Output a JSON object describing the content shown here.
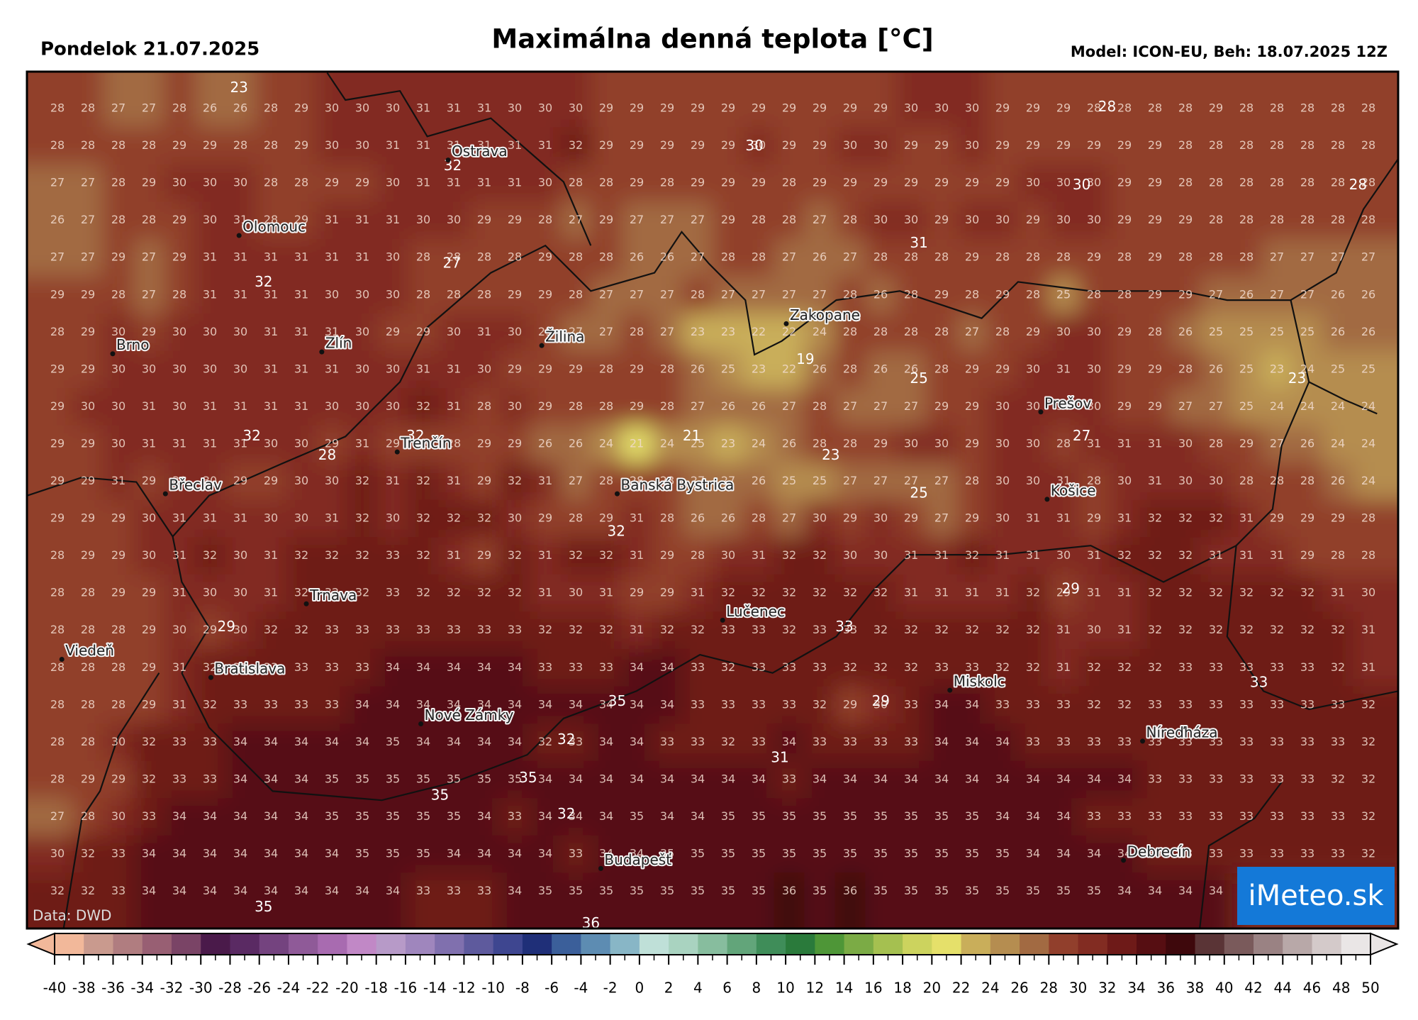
{
  "header": {
    "date": "Pondelok 21.07.2025",
    "title": "Maximálna denná teplota [°C]",
    "model": "Model: ICON-EU, Beh: 18.07.2025 12Z"
  },
  "map": {
    "grid": [
      [
        28,
        28,
        27,
        27,
        28,
        26,
        26,
        28,
        29,
        30,
        30,
        30,
        31,
        31,
        31,
        30,
        30,
        30,
        29,
        29,
        29,
        29,
        29,
        29,
        29,
        29,
        29,
        29,
        30,
        30,
        30,
        29,
        29,
        29,
        28,
        28,
        28,
        28,
        29,
        28,
        28,
        28,
        28,
        28
      ],
      [
        28,
        28,
        28,
        28,
        29,
        29,
        28,
        28,
        29,
        30,
        30,
        31,
        31,
        31,
        31,
        31,
        31,
        32,
        29,
        29,
        29,
        29,
        29,
        30,
        29,
        29,
        30,
        30,
        29,
        29,
        30,
        29,
        29,
        29,
        29,
        29,
        29,
        28,
        28,
        28,
        28,
        28,
        28,
        28
      ],
      [
        27,
        27,
        28,
        29,
        30,
        30,
        30,
        28,
        28,
        29,
        29,
        30,
        31,
        31,
        31,
        31,
        30,
        28,
        28,
        29,
        28,
        29,
        29,
        29,
        28,
        29,
        29,
        29,
        29,
        29,
        29,
        29,
        30,
        30,
        30,
        29,
        29,
        28,
        28,
        28,
        28,
        28,
        28,
        28
      ],
      [
        26,
        27,
        28,
        28,
        29,
        30,
        31,
        28,
        29,
        31,
        31,
        31,
        30,
        30,
        29,
        29,
        28,
        27,
        29,
        27,
        27,
        27,
        29,
        28,
        28,
        27,
        28,
        30,
        30,
        29,
        30,
        30,
        29,
        30,
        30,
        29,
        29,
        29,
        28,
        28,
        28,
        28,
        28,
        28
      ],
      [
        27,
        27,
        29,
        27,
        29,
        31,
        31,
        31,
        31,
        31,
        31,
        30,
        28,
        28,
        28,
        28,
        29,
        28,
        28,
        26,
        26,
        27,
        28,
        28,
        27,
        26,
        27,
        28,
        28,
        28,
        29,
        28,
        28,
        28,
        29,
        28,
        29,
        28,
        28,
        28,
        27,
        27,
        27,
        27
      ],
      [
        29,
        29,
        28,
        27,
        28,
        31,
        31,
        31,
        31,
        30,
        30,
        30,
        28,
        28,
        28,
        29,
        29,
        28,
        27,
        27,
        27,
        28,
        27,
        27,
        27,
        27,
        28,
        26,
        28,
        29,
        28,
        29,
        28,
        25,
        28,
        28,
        29,
        29,
        27,
        26,
        27,
        27,
        26,
        26
      ],
      [
        28,
        29,
        30,
        29,
        30,
        30,
        30,
        31,
        31,
        31,
        30,
        29,
        29,
        30,
        31,
        30,
        29,
        27,
        27,
        28,
        27,
        23,
        23,
        22,
        22,
        24,
        28,
        28,
        28,
        28,
        27,
        28,
        29,
        30,
        30,
        29,
        28,
        26,
        25,
        25,
        25,
        25,
        26,
        26
      ],
      [
        29,
        29,
        30,
        30,
        30,
        30,
        30,
        31,
        31,
        31,
        30,
        30,
        31,
        31,
        30,
        29,
        29,
        29,
        28,
        29,
        28,
        26,
        25,
        23,
        22,
        26,
        28,
        26,
        26,
        28,
        29,
        29,
        30,
        31,
        30,
        29,
        29,
        28,
        26,
        25,
        23,
        24,
        25,
        25
      ],
      [
        29,
        30,
        30,
        31,
        30,
        31,
        31,
        31,
        31,
        30,
        30,
        30,
        32,
        31,
        28,
        30,
        29,
        28,
        28,
        29,
        28,
        27,
        26,
        26,
        27,
        28,
        27,
        27,
        27,
        29,
        29,
        30,
        30,
        30,
        30,
        29,
        29,
        27,
        27,
        25,
        24,
        24,
        24,
        24
      ],
      [
        29,
        29,
        30,
        31,
        31,
        31,
        31,
        30,
        30,
        29,
        31,
        29,
        29,
        28,
        29,
        29,
        26,
        26,
        24,
        21,
        24,
        25,
        23,
        24,
        26,
        28,
        28,
        29,
        30,
        30,
        29,
        30,
        30,
        28,
        31,
        31,
        31,
        30,
        28,
        29,
        27,
        26,
        24,
        24
      ],
      [
        29,
        29,
        31,
        29,
        30,
        30,
        29,
        29,
        30,
        30,
        32,
        31,
        32,
        31,
        29,
        32,
        31,
        27,
        28,
        28,
        28,
        27,
        27,
        26,
        25,
        25,
        27,
        27,
        27,
        27,
        28,
        30,
        30,
        31,
        28,
        30,
        31,
        30,
        30,
        28,
        28,
        28,
        26,
        24
      ],
      [
        29,
        29,
        29,
        30,
        31,
        31,
        31,
        30,
        30,
        31,
        32,
        30,
        32,
        32,
        32,
        30,
        29,
        28,
        29,
        31,
        28,
        26,
        26,
        28,
        27,
        30,
        29,
        30,
        29,
        27,
        29,
        30,
        31,
        31,
        29,
        31,
        32,
        32,
        32,
        31,
        29,
        29,
        29,
        28
      ],
      [
        28,
        29,
        29,
        30,
        31,
        32,
        30,
        31,
        32,
        32,
        32,
        33,
        32,
        31,
        29,
        32,
        31,
        32,
        32,
        31,
        29,
        28,
        30,
        31,
        32,
        32,
        30,
        30,
        31,
        31,
        32,
        31,
        31,
        30,
        31,
        32,
        32,
        32,
        31,
        31,
        31,
        29,
        28,
        28
      ],
      [
        28,
        28,
        29,
        29,
        31,
        30,
        30,
        31,
        32,
        32,
        32,
        33,
        32,
        32,
        32,
        32,
        31,
        30,
        31,
        29,
        29,
        31,
        32,
        32,
        32,
        32,
        32,
        32,
        31,
        31,
        31,
        31,
        32,
        29,
        31,
        31,
        32,
        32,
        32,
        32,
        32,
        32,
        31,
        30
      ],
      [
        28,
        28,
        28,
        29,
        30,
        29,
        30,
        32,
        32,
        33,
        33,
        33,
        33,
        33,
        33,
        33,
        32,
        32,
        32,
        31,
        32,
        32,
        33,
        33,
        32,
        33,
        33,
        32,
        32,
        32,
        32,
        32,
        32,
        31,
        30,
        31,
        32,
        32,
        32,
        32,
        32,
        32,
        32,
        31
      ],
      [
        28,
        28,
        28,
        29,
        31,
        32,
        32,
        33,
        33,
        33,
        33,
        34,
        34,
        34,
        34,
        34,
        33,
        33,
        33,
        34,
        34,
        33,
        32,
        33,
        33,
        33,
        32,
        32,
        32,
        33,
        33,
        32,
        32,
        31,
        32,
        32,
        32,
        33,
        33,
        33,
        33,
        33,
        32,
        31
      ],
      [
        28,
        28,
        28,
        29,
        31,
        32,
        33,
        33,
        33,
        33,
        34,
        34,
        34,
        34,
        34,
        34,
        34,
        34,
        34,
        34,
        34,
        33,
        33,
        33,
        33,
        32,
        29,
        30,
        33,
        34,
        34,
        33,
        33,
        33,
        32,
        32,
        33,
        33,
        33,
        33,
        33,
        33,
        33,
        32
      ],
      [
        28,
        28,
        30,
        32,
        33,
        33,
        34,
        34,
        34,
        34,
        34,
        35,
        34,
        34,
        34,
        34,
        32,
        33,
        34,
        34,
        33,
        33,
        32,
        33,
        34,
        33,
        33,
        33,
        33,
        34,
        34,
        34,
        33,
        33,
        33,
        33,
        33,
        33,
        33,
        33,
        33,
        33,
        33,
        32
      ],
      [
        28,
        29,
        29,
        32,
        33,
        33,
        34,
        34,
        34,
        35,
        35,
        35,
        35,
        35,
        35,
        35,
        34,
        34,
        34,
        34,
        34,
        34,
        34,
        34,
        33,
        34,
        34,
        34,
        34,
        34,
        34,
        34,
        34,
        34,
        34,
        34,
        33,
        33,
        33,
        33,
        33,
        33,
        32,
        32
      ],
      [
        27,
        28,
        30,
        33,
        34,
        34,
        34,
        34,
        34,
        35,
        35,
        35,
        35,
        35,
        34,
        33,
        34,
        34,
        34,
        35,
        34,
        34,
        35,
        35,
        35,
        35,
        35,
        35,
        35,
        35,
        35,
        34,
        34,
        34,
        33,
        33,
        33,
        33,
        33,
        33,
        33,
        33,
        33,
        32
      ],
      [
        30,
        32,
        33,
        34,
        34,
        34,
        34,
        34,
        34,
        34,
        35,
        35,
        35,
        34,
        34,
        34,
        34,
        33,
        34,
        34,
        35,
        35,
        35,
        35,
        35,
        35,
        35,
        35,
        35,
        35,
        35,
        35,
        34,
        34,
        34,
        34,
        33,
        33,
        33,
        33,
        33,
        33,
        33,
        32
      ],
      [
        32,
        32,
        33,
        34,
        34,
        34,
        34,
        34,
        34,
        34,
        34,
        34,
        33,
        33,
        33,
        34,
        35,
        35,
        35,
        35,
        35,
        35,
        35,
        35,
        36,
        35,
        36,
        35,
        35,
        35,
        35,
        35,
        35,
        35,
        35,
        34,
        34,
        34,
        34
      ]
    ],
    "contour_labels": [
      23,
      32,
      30,
      28,
      30,
      28,
      31,
      27,
      32,
      19,
      25,
      23,
      32,
      32,
      21,
      23,
      27,
      28,
      25,
      32,
      29,
      29,
      33,
      33,
      35,
      29,
      32,
      31,
      35,
      35,
      32,
      35,
      36
    ],
    "cities": [
      "Ostrava",
      "Olomouc",
      "Brno",
      "Zlín",
      "Žilina",
      "Zakopane",
      "Prešov",
      "Trenčín",
      "Břeclav",
      "Banská Bystrica",
      "Košice",
      "Trnava",
      "Lučenec",
      "Viedeň",
      "Bratislava",
      "Miskolc",
      "Nové Zámky",
      "Níreďháza",
      "Budapešť",
      "Debrecín"
    ]
  },
  "colorbar": {
    "ticks": [
      -40,
      -38,
      -36,
      -34,
      -32,
      -30,
      -28,
      -26,
      -24,
      -22,
      -20,
      -18,
      -16,
      -14,
      -12,
      -10,
      -8,
      -6,
      -4,
      -2,
      0,
      2,
      4,
      6,
      8,
      10,
      12,
      14,
      16,
      18,
      20,
      22,
      24,
      26,
      28,
      30,
      32,
      34,
      36,
      38,
      40,
      42,
      44,
      46,
      48,
      50
    ],
    "colors": [
      "#f2b89a",
      "#c99a8e",
      "#b07d80",
      "#985f73",
      "#7a4466",
      "#4a1a4a",
      "#5a2a63",
      "#74437f",
      "#8f5a98",
      "#a86bb0",
      "#c188c6",
      "#b79ac8",
      "#9f86bd",
      "#8070ae",
      "#5e5a9d",
      "#3e4690",
      "#1f2f78",
      "#3b5f9a",
      "#5d8cb2",
      "#88b6c6",
      "#bfe0d8",
      "#a9d3c0",
      "#87bd9e",
      "#62a57a",
      "#3f8d59",
      "#2a7a3b",
      "#4e9637",
      "#7bab45",
      "#a5c050",
      "#ccd35e",
      "#e5e06a",
      "#c9ae5a",
      "#b58d50",
      "#a26a42",
      "#913f2c",
      "#822c22",
      "#6e1a18",
      "#560e12",
      "#3e080c",
      "#5a3436",
      "#7a5a5b",
      "#9a8283",
      "#b8a8a8",
      "#d4caca",
      "#eae6e6"
    ]
  },
  "source": "Data: DWD",
  "logo": "iMeteo.sk"
}
